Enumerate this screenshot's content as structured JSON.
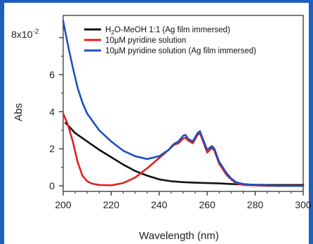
{
  "chart_data": {
    "type": "line",
    "xlabel": "Wavelength (nm)",
    "ylabel": "Abs",
    "xlim": [
      200,
      300
    ],
    "ylim": [
      -0.3,
      9.2
    ],
    "y_scale_label": "8x10",
    "y_scale_exponent": "-2",
    "x_ticks": [
      200,
      220,
      240,
      260,
      280,
      300
    ],
    "x_tick_labels": [
      "200",
      "220",
      "240",
      "260",
      "280",
      "300"
    ],
    "y_ticks": [
      0,
      2,
      4,
      6,
      8
    ],
    "y_tick_labels": [
      "0",
      "2",
      "4",
      "6",
      ""
    ],
    "grid": false,
    "legend_position": "top-right",
    "frame_color": "#1f5fbf",
    "series": [
      {
        "name": "H2O-MeOH 1:1 (Ag film immersed)",
        "label_parts": [
          "H",
          "2",
          "O-MeOH 1:1 (Ag film immersed)"
        ],
        "color": "#111111",
        "x": [
          201,
          205,
          210,
          215,
          220,
          225,
          230,
          235,
          240,
          245,
          250,
          255,
          260,
          265,
          270,
          275,
          280,
          285,
          290,
          295,
          300
        ],
        "y": [
          3.4,
          2.85,
          2.4,
          1.95,
          1.55,
          1.15,
          0.8,
          0.55,
          0.35,
          0.25,
          0.2,
          0.17,
          0.15,
          0.13,
          0.1,
          0.08,
          0.06,
          0.05,
          0.05,
          0.05,
          0.05
        ]
      },
      {
        "name": "10µM pyridine solution",
        "label_parts": [
          "10µM pyridine solution"
        ],
        "color": "#e02020",
        "x": [
          200,
          202,
          204,
          206,
          208,
          210,
          212,
          215,
          220,
          225,
          230,
          235,
          240,
          244,
          246,
          248,
          250,
          251,
          252,
          254,
          256,
          257,
          258,
          260,
          262,
          263,
          265,
          268,
          270,
          272,
          275,
          280,
          285,
          290,
          295,
          300
        ],
        "y": [
          3.9,
          3.3,
          2.4,
          1.3,
          0.55,
          0.25,
          0.12,
          0.05,
          0.03,
          0.15,
          0.45,
          0.95,
          1.5,
          1.95,
          2.2,
          2.3,
          2.55,
          2.6,
          2.45,
          2.3,
          2.75,
          2.85,
          2.5,
          1.8,
          2.05,
          1.9,
          1.2,
          0.6,
          0.35,
          0.15,
          0.05,
          0.02,
          0.0,
          0.0,
          0.0,
          0.0
        ]
      },
      {
        "name": "10µM pyridine solution (Ag film immersed)",
        "label_parts": [
          "10µM pyridine solution (Ag film immersed)"
        ],
        "color": "#1f4fbf",
        "x": [
          200,
          202,
          204,
          206,
          208,
          210,
          215,
          220,
          225,
          230,
          235,
          240,
          244,
          246,
          248,
          250,
          251,
          252,
          254,
          256,
          257,
          258,
          260,
          262,
          263,
          265,
          268,
          270,
          272,
          275,
          280,
          285,
          290,
          295,
          300
        ],
        "y": [
          8.9,
          7.6,
          6.4,
          5.3,
          4.5,
          3.9,
          3.0,
          2.4,
          1.9,
          1.6,
          1.45,
          1.6,
          1.95,
          2.25,
          2.4,
          2.7,
          2.75,
          2.55,
          2.4,
          2.85,
          2.95,
          2.6,
          1.95,
          2.15,
          2.0,
          1.3,
          0.7,
          0.4,
          0.2,
          0.1,
          0.05,
          0.02,
          0.0,
          0.0,
          0.0
        ]
      }
    ]
  }
}
